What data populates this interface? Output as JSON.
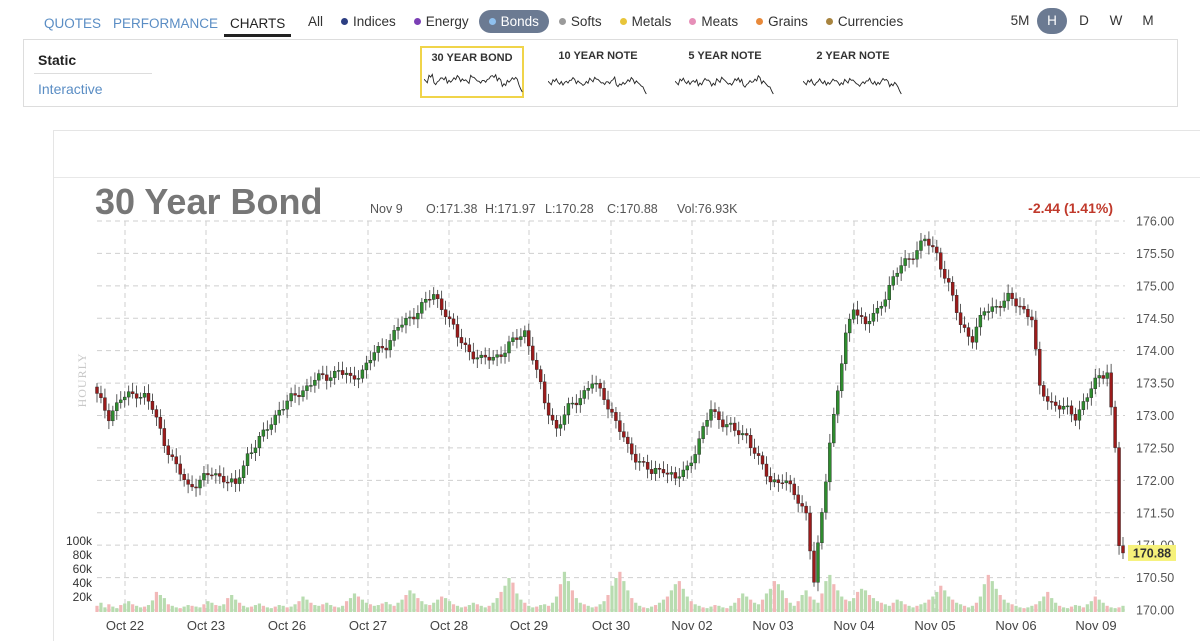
{
  "nav": {
    "tabs": [
      "QUOTES",
      "PERFORMANCE",
      "CHARTS"
    ],
    "active": "CHARTS"
  },
  "filters": [
    {
      "label": "All",
      "color": ""
    },
    {
      "label": "Indices",
      "color": "#2c3e82"
    },
    {
      "label": "Energy",
      "color": "#7b3fb5"
    },
    {
      "label": "Bonds",
      "color": "#6aa6e0",
      "active": true
    },
    {
      "label": "Softs",
      "color": "#9a9a9a"
    },
    {
      "label": "Metals",
      "color": "#e8c53a"
    },
    {
      "label": "Meats",
      "color": "#e68fb8"
    },
    {
      "label": "Grains",
      "color": "#e8893a"
    },
    {
      "label": "Currencies",
      "color": "#a8843f"
    }
  ],
  "intervals": [
    "5M",
    "H",
    "D",
    "W",
    "M"
  ],
  "active_interval": "H",
  "modes": {
    "static": "Static",
    "interactive": "Interactive"
  },
  "thumbs": [
    "30 YEAR BOND",
    "10 YEAR NOTE",
    "5 YEAR NOTE",
    "2 YEAR NOTE"
  ],
  "chart_data": {
    "type": "candlestick",
    "title": "30 Year Bond",
    "info": {
      "date": "Nov 9",
      "open": "O:171.38",
      "high": "H:171.97",
      "low": "L:170.28",
      "close": "C:170.88",
      "volume": "Vol:76.93K"
    },
    "change": "-2.44 (1.41%)",
    "last_price": "170.88",
    "side_label": "HOURLY",
    "ylim": [
      170.0,
      176.0
    ],
    "y_ticks": [
      "176.00",
      "175.50",
      "175.00",
      "174.50",
      "174.00",
      "173.50",
      "173.00",
      "172.50",
      "172.00",
      "171.50",
      "171.00",
      "170.50",
      "170.00"
    ],
    "volume_ticks": [
      "100k",
      "80k",
      "60k",
      "40k",
      "20k"
    ],
    "x_labels": [
      "Oct 22",
      "Oct 23",
      "Oct 26",
      "Oct 27",
      "Oct 28",
      "Oct 29",
      "Oct 30",
      "Nov 02",
      "Nov 03",
      "Nov 04",
      "Nov 05",
      "Nov 06",
      "Nov 09"
    ],
    "close_path": [
      [
        0,
        173.3
      ],
      [
        3,
        173.0
      ],
      [
        6,
        173.25
      ],
      [
        10,
        173.35
      ],
      [
        12,
        173.3
      ],
      [
        14,
        173.1
      ],
      [
        17,
        172.6
      ],
      [
        20,
        172.2
      ],
      [
        23,
        171.9
      ],
      [
        26,
        172.0
      ],
      [
        29,
        172.1
      ],
      [
        32,
        172.05
      ],
      [
        35,
        171.9
      ],
      [
        38,
        172.4
      ],
      [
        42,
        172.7
      ],
      [
        46,
        173.1
      ],
      [
        49,
        173.25
      ],
      [
        52,
        173.4
      ],
      [
        55,
        173.55
      ],
      [
        58,
        173.6
      ],
      [
        61,
        173.7
      ],
      [
        64,
        173.55
      ],
      [
        67,
        173.7
      ],
      [
        70,
        173.95
      ],
      [
        73,
        174.1
      ],
      [
        76,
        174.35
      ],
      [
        79,
        174.5
      ],
      [
        82,
        174.7
      ],
      [
        85,
        174.85
      ],
      [
        88,
        174.6
      ],
      [
        91,
        174.2
      ],
      [
        94,
        174.0
      ],
      [
        97,
        173.85
      ],
      [
        100,
        173.9
      ],
      [
        103,
        174.0
      ],
      [
        106,
        174.2
      ],
      [
        108,
        174.3
      ],
      [
        110,
        173.9
      ],
      [
        113,
        173.2
      ],
      [
        116,
        172.8
      ],
      [
        119,
        173.1
      ],
      [
        122,
        173.3
      ],
      [
        125,
        173.5
      ],
      [
        128,
        173.3
      ],
      [
        131,
        172.9
      ],
      [
        134,
        172.5
      ],
      [
        137,
        172.3
      ],
      [
        140,
        172.1
      ],
      [
        143,
        172.2
      ],
      [
        146,
        172.0
      ],
      [
        149,
        172.2
      ],
      [
        152,
        172.6
      ],
      [
        155,
        173.1
      ],
      [
        158,
        172.9
      ],
      [
        161,
        172.75
      ],
      [
        164,
        172.7
      ],
      [
        167,
        172.3
      ],
      [
        170,
        172.0
      ],
      [
        173,
        172.0
      ],
      [
        176,
        171.8
      ],
      [
        179,
        171.5
      ],
      [
        181,
        170.4
      ],
      [
        183,
        171.5
      ],
      [
        185,
        172.6
      ],
      [
        187,
        173.4
      ],
      [
        189,
        174.2
      ],
      [
        191,
        174.7
      ],
      [
        194,
        174.4
      ],
      [
        197,
        174.6
      ],
      [
        200,
        175.0
      ],
      [
        203,
        175.3
      ],
      [
        206,
        175.5
      ],
      [
        209,
        175.7
      ],
      [
        212,
        175.5
      ],
      [
        215,
        175.0
      ],
      [
        218,
        174.4
      ],
      [
        221,
        174.2
      ],
      [
        224,
        174.6
      ],
      [
        227,
        174.7
      ],
      [
        230,
        174.8
      ],
      [
        233,
        174.7
      ],
      [
        236,
        174.5
      ],
      [
        238,
        173.4
      ],
      [
        241,
        173.2
      ],
      [
        244,
        173.1
      ],
      [
        247,
        173.0
      ],
      [
        250,
        173.3
      ],
      [
        253,
        173.6
      ],
      [
        255,
        173.7
      ],
      [
        257,
        172.5
      ],
      [
        258,
        171.0
      ],
      [
        259,
        170.88
      ]
    ],
    "volume_profile": [
      8,
      12,
      6,
      10,
      7,
      5,
      9,
      11,
      14,
      10,
      8,
      6,
      7,
      9,
      15,
      26,
      22,
      18,
      10,
      8,
      6,
      5,
      7,
      9,
      8,
      7,
      6,
      10,
      14,
      12,
      9,
      8,
      10,
      18,
      22,
      16,
      12,
      8,
      6,
      7,
      9,
      11,
      8,
      6,
      5,
      7,
      9,
      8,
      6,
      7,
      10,
      14,
      20,
      16,
      12,
      9,
      8,
      10,
      12,
      9,
      7,
      6,
      8,
      14,
      18,
      24,
      20,
      16,
      12,
      10,
      8,
      9,
      11,
      13,
      10,
      8,
      12,
      16,
      22,
      28,
      24,
      18,
      14,
      10,
      9,
      12,
      16,
      20,
      18,
      14,
      10,
      8,
      6,
      7,
      9,
      12,
      10,
      8,
      6,
      8,
      12,
      18,
      26,
      34,
      44,
      38,
      24,
      16,
      12,
      8,
      6,
      7,
      9,
      10,
      8,
      12,
      20,
      36,
      52,
      40,
      28,
      18,
      12,
      10,
      8,
      6,
      7,
      10,
      14,
      22,
      34,
      44,
      52,
      40,
      28,
      18,
      12,
      8,
      6,
      5,
      7,
      9,
      12,
      16,
      20,
      28,
      36,
      40,
      30,
      20,
      14,
      10,
      8,
      6,
      5,
      7,
      9,
      8,
      6,
      5,
      8,
      12,
      18,
      24,
      20,
      16,
      12,
      10,
      16,
      24,
      30,
      40,
      36,
      28,
      18,
      12,
      8,
      14,
      22,
      28,
      20,
      16,
      12,
      24,
      40,
      48,
      36,
      28,
      20,
      16,
      14,
      18,
      26,
      30,
      28,
      22,
      18,
      14,
      12,
      10,
      8,
      12,
      16,
      14,
      10,
      8,
      6,
      8,
      10,
      12,
      16,
      20,
      26,
      34,
      28,
      20,
      16,
      12,
      10,
      8,
      6,
      8,
      12,
      20,
      36,
      48,
      40,
      30,
      22,
      16,
      12,
      10,
      8,
      6,
      5,
      6,
      8,
      10,
      14,
      20,
      26,
      18,
      12,
      8,
      6,
      5,
      7,
      9,
      8,
      6,
      10,
      14,
      20,
      16,
      12,
      8,
      6,
      5,
      6,
      8,
      10,
      14,
      24,
      40,
      30,
      20
    ]
  }
}
